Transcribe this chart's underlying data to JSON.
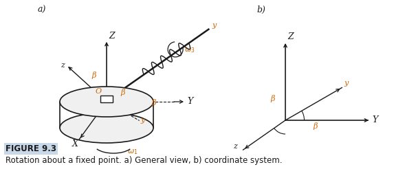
{
  "fig_width": 5.73,
  "fig_height": 2.59,
  "dpi": 100,
  "bg_color": "#ffffff",
  "orange_color": "#cc6600",
  "dark_color": "#1a1a1a",
  "blue_label_color": "#4466aa",
  "caption_bold": "FIGURE 9.3",
  "caption_text": "Rotation about a fixed point. a) General view, b) coordinate system.",
  "label_a": "a)",
  "label_b": "b)"
}
